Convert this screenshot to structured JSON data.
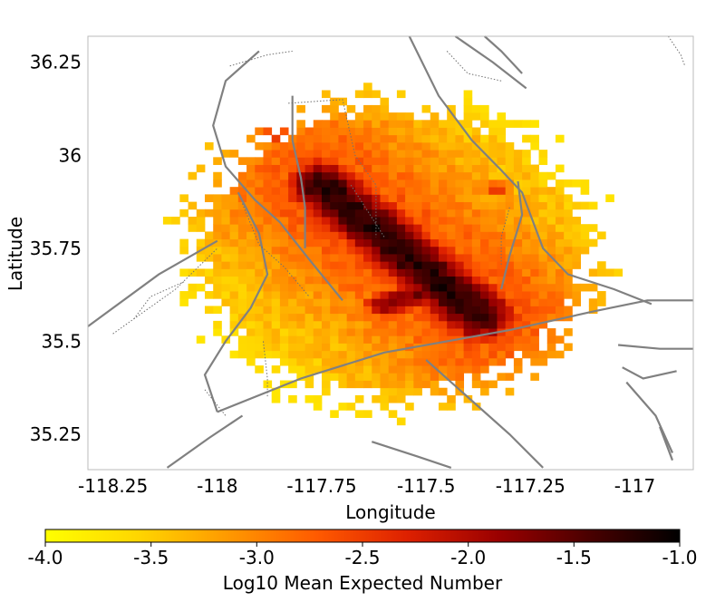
{
  "chart_data": {
    "type": "heatmap",
    "xlabel": "Longitude",
    "ylabel": "Latitude",
    "xlim": [
      -118.31,
      -116.86
    ],
    "ylim": [
      35.155,
      36.32
    ],
    "x_ticks": [
      {
        "value": -118.25,
        "label": "-118.25"
      },
      {
        "value": -118.0,
        "label": "-118"
      },
      {
        "value": -117.75,
        "label": "-117.75"
      },
      {
        "value": -117.5,
        "label": "-117.5"
      },
      {
        "value": -117.25,
        "label": "-117.25"
      },
      {
        "value": -117.0,
        "label": "-117"
      }
    ],
    "y_ticks": [
      {
        "value": 35.25,
        "label": "35.25"
      },
      {
        "value": 35.5,
        "label": "35.5"
      },
      {
        "value": 35.75,
        "label": "35.75"
      },
      {
        "value": 36.0,
        "label": "36"
      },
      {
        "value": 36.25,
        "label": "36.25"
      }
    ],
    "grid": false,
    "cell_size_deg": 0.02,
    "colorscale": "hot_r",
    "colorbar": {
      "label": "Log10 Mean Expected Number",
      "range": [
        -4.0,
        -1.0
      ],
      "ticks": [
        {
          "value": -4.0,
          "label": "-4.0"
        },
        {
          "value": -3.5,
          "label": "-3.5"
        },
        {
          "value": -3.0,
          "label": "-3.0"
        },
        {
          "value": -2.5,
          "label": "-2.5"
        },
        {
          "value": -2.0,
          "label": "-2.0"
        },
        {
          "value": -1.5,
          "label": "-1.5"
        },
        {
          "value": -1.0,
          "label": "-1.0"
        }
      ],
      "colors": [
        "#ffff00",
        "#ffd700",
        "#ff9a00",
        "#ff5a00",
        "#dd2000",
        "#9a0000",
        "#4a0000",
        "#000000"
      ]
    },
    "density_model": {
      "background": -3.6,
      "features": [
        {
          "name": "main-ridge",
          "from": [
            -117.75,
            35.92
          ],
          "to": [
            -117.37,
            35.57
          ],
          "peak": -1.2,
          "width": 0.055
        },
        {
          "name": "ridge-halo",
          "from": [
            -117.75,
            35.92
          ],
          "to": [
            -117.37,
            35.57
          ],
          "peak": -2.6,
          "width": 0.17
        },
        {
          "name": "southwest-spur",
          "from": [
            -117.6,
            35.6
          ],
          "to": [
            -117.47,
            35.64
          ],
          "peak": -1.7,
          "width": 0.03
        },
        {
          "name": "north-spot",
          "from": [
            -117.89,
            36.17
          ],
          "to": [
            -117.89,
            36.17
          ],
          "peak": -2.0,
          "width": 0.03
        },
        {
          "name": "north-spot-2",
          "from": [
            -117.86,
            36.06
          ],
          "to": [
            -117.86,
            36.06
          ],
          "peak": -2.4,
          "width": 0.035
        },
        {
          "name": "east-spot",
          "from": [
            -117.33,
            35.91
          ],
          "to": [
            -117.33,
            35.91
          ],
          "peak": -2.5,
          "width": 0.02
        }
      ],
      "extent": {
        "center": [
          -117.58,
          35.74
        ],
        "rx": 0.56,
        "ry": 0.47
      }
    },
    "faults": [
      {
        "style": "solid",
        "points": [
          [
            -118.31,
            35.54
          ],
          [
            -118.14,
            35.68
          ],
          [
            -118.0,
            35.77
          ]
        ]
      },
      {
        "style": "solid",
        "points": [
          [
            -118.0,
            35.31
          ],
          [
            -117.8,
            35.4
          ],
          [
            -117.6,
            35.47
          ],
          [
            -117.3,
            35.53
          ],
          [
            -117.1,
            35.58
          ],
          [
            -116.97,
            35.61
          ],
          [
            -116.86,
            35.61
          ]
        ]
      },
      {
        "style": "solid",
        "points": [
          [
            -118.12,
            35.16
          ],
          [
            -118.02,
            35.24
          ],
          [
            -117.94,
            35.3
          ]
        ]
      },
      {
        "style": "solid",
        "points": [
          [
            -117.9,
            36.28
          ],
          [
            -117.98,
            36.2
          ],
          [
            -118.01,
            36.08
          ],
          [
            -117.98,
            35.97
          ],
          [
            -117.91,
            35.88
          ],
          [
            -117.85,
            35.82
          ],
          [
            -117.78,
            35.72
          ],
          [
            -117.7,
            35.61
          ]
        ]
      },
      {
        "style": "solid",
        "points": [
          [
            -117.95,
            35.9
          ],
          [
            -117.9,
            35.79
          ],
          [
            -117.88,
            35.68
          ],
          [
            -117.92,
            35.59
          ],
          [
            -117.98,
            35.5
          ],
          [
            -118.03,
            35.41
          ],
          [
            -118.0,
            35.31
          ]
        ]
      },
      {
        "style": "solid",
        "points": [
          [
            -117.82,
            36.16
          ],
          [
            -117.82,
            36.04
          ],
          [
            -117.8,
            35.94
          ],
          [
            -117.79,
            35.86
          ],
          [
            -117.79,
            35.75
          ]
        ]
      },
      {
        "style": "solid",
        "points": [
          [
            -117.54,
            36.32
          ],
          [
            -117.47,
            36.16
          ],
          [
            -117.39,
            36.04
          ],
          [
            -117.32,
            35.96
          ],
          [
            -117.27,
            35.9
          ],
          [
            -117.22,
            35.75
          ],
          [
            -117.16,
            35.68
          ],
          [
            -117.05,
            35.64
          ],
          [
            -116.96,
            35.6
          ]
        ]
      },
      {
        "style": "solid",
        "points": [
          [
            -117.43,
            36.32
          ],
          [
            -117.34,
            36.25
          ],
          [
            -117.26,
            36.18
          ]
        ]
      },
      {
        "style": "solid",
        "points": [
          [
            -117.36,
            36.32
          ],
          [
            -117.32,
            36.28
          ],
          [
            -117.27,
            36.22
          ]
        ]
      },
      {
        "style": "solid",
        "points": [
          [
            -117.28,
            35.93
          ],
          [
            -117.27,
            35.84
          ],
          [
            -117.3,
            35.73
          ],
          [
            -117.32,
            35.64
          ]
        ]
      },
      {
        "style": "solid",
        "points": [
          [
            -117.5,
            35.45
          ],
          [
            -117.4,
            35.35
          ],
          [
            -117.3,
            35.25
          ],
          [
            -117.22,
            35.16
          ]
        ]
      },
      {
        "style": "solid",
        "points": [
          [
            -117.63,
            35.23
          ],
          [
            -117.52,
            35.19
          ],
          [
            -117.44,
            35.16
          ]
        ]
      },
      {
        "style": "solid",
        "points": [
          [
            -117.04,
            35.49
          ],
          [
            -116.94,
            35.48
          ],
          [
            -116.86,
            35.48
          ]
        ]
      },
      {
        "style": "solid",
        "points": [
          [
            -117.03,
            35.43
          ],
          [
            -116.98,
            35.4
          ],
          [
            -116.9,
            35.42
          ]
        ]
      },
      {
        "style": "solid",
        "points": [
          [
            -117.02,
            35.39
          ],
          [
            -116.95,
            35.3
          ],
          [
            -116.91,
            35.2
          ]
        ]
      },
      {
        "style": "solid",
        "points": [
          [
            -116.94,
            35.27
          ],
          [
            -116.91,
            35.18
          ]
        ]
      },
      {
        "style": "dotted",
        "points": [
          [
            -118.25,
            35.52
          ],
          [
            -118.1,
            35.64
          ],
          [
            -118.0,
            35.75
          ]
        ]
      },
      {
        "style": "dotted",
        "points": [
          [
            -118.2,
            35.56
          ],
          [
            -118.16,
            35.62
          ],
          [
            -118.08,
            35.66
          ]
        ]
      },
      {
        "style": "dotted",
        "points": [
          [
            -117.97,
            36.24
          ],
          [
            -117.88,
            36.27
          ],
          [
            -117.82,
            36.28
          ]
        ]
      },
      {
        "style": "dotted",
        "points": [
          [
            -117.83,
            36.14
          ],
          [
            -117.7,
            36.15
          ],
          [
            -117.67,
            36.0
          ],
          [
            -117.62,
            35.92
          ],
          [
            -117.62,
            35.78
          ]
        ]
      },
      {
        "style": "dotted",
        "points": [
          [
            -117.68,
            35.92
          ],
          [
            -117.64,
            35.85
          ],
          [
            -117.6,
            35.78
          ]
        ]
      },
      {
        "style": "dotted",
        "points": [
          [
            -117.94,
            35.87
          ],
          [
            -117.9,
            35.76
          ],
          [
            -117.84,
            35.7
          ],
          [
            -117.78,
            35.62
          ]
        ]
      },
      {
        "style": "dotted",
        "points": [
          [
            -118.03,
            35.37
          ],
          [
            -117.98,
            35.3
          ]
        ]
      },
      {
        "style": "dotted",
        "points": [
          [
            -117.89,
            35.5
          ],
          [
            -117.88,
            35.4
          ],
          [
            -117.88,
            35.35
          ]
        ]
      },
      {
        "style": "dotted",
        "points": [
          [
            -117.45,
            36.28
          ],
          [
            -117.4,
            36.22
          ],
          [
            -117.32,
            36.2
          ]
        ]
      },
      {
        "style": "dotted",
        "points": [
          [
            -117.3,
            35.86
          ],
          [
            -117.32,
            35.78
          ],
          [
            -117.32,
            35.7
          ]
        ]
      },
      {
        "style": "dotted",
        "points": [
          [
            -116.92,
            36.32
          ],
          [
            -116.89,
            36.27
          ],
          [
            -116.88,
            36.24
          ]
        ]
      }
    ]
  }
}
